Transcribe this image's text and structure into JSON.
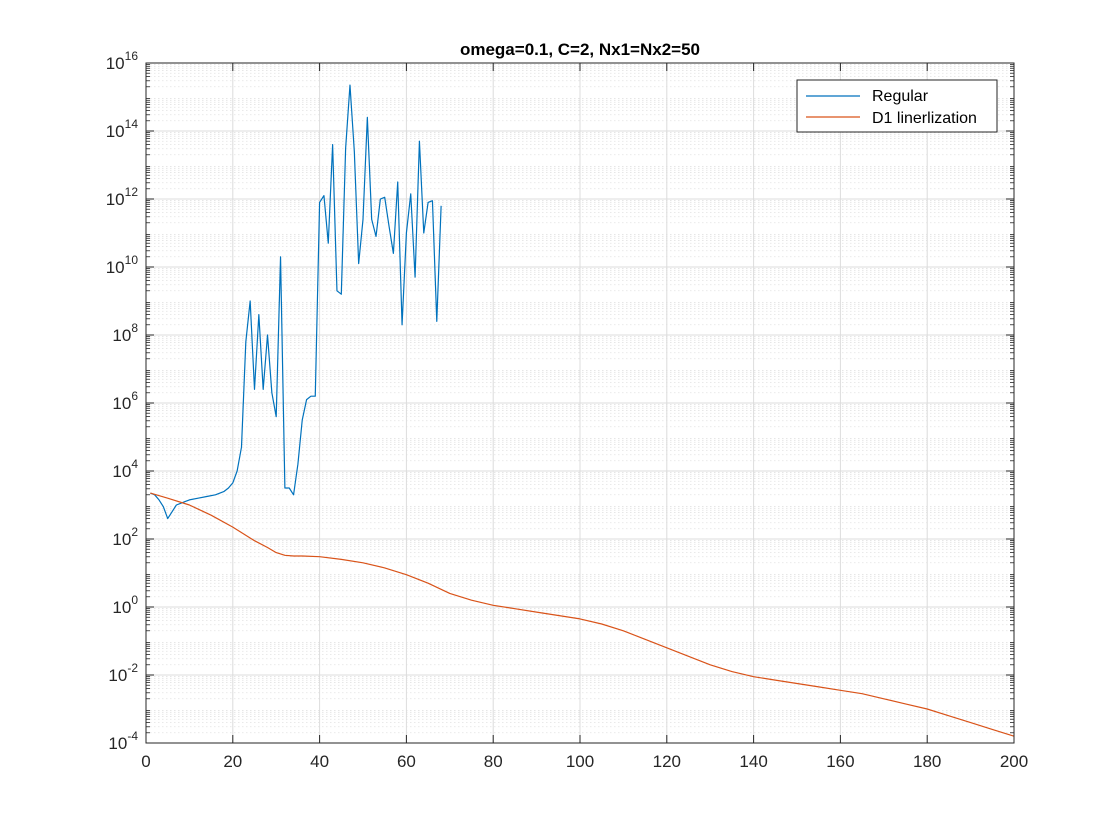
{
  "chart_data": {
    "type": "line",
    "title": "omega=0.1, C=2, Nx1=Nx2=50",
    "xlabel": "",
    "ylabel": "",
    "xlim": [
      0,
      200
    ],
    "ylim_log10": [
      -4,
      16
    ],
    "y_scale": "log",
    "x_ticks": [
      0,
      20,
      40,
      60,
      80,
      100,
      120,
      140,
      160,
      180,
      200
    ],
    "x_tick_labels": [
      "0",
      "20",
      "40",
      "60",
      "80",
      "100",
      "120",
      "140",
      "160",
      "180",
      "200"
    ],
    "y_tick_exponents": [
      -4,
      -2,
      0,
      2,
      4,
      6,
      8,
      10,
      12,
      14,
      16
    ],
    "y_tick_labels": [
      {
        "base": "10",
        "exp": "-4"
      },
      {
        "base": "10",
        "exp": "-2"
      },
      {
        "base": "10",
        "exp": "0"
      },
      {
        "base": "10",
        "exp": "2"
      },
      {
        "base": "10",
        "exp": "4"
      },
      {
        "base": "10",
        "exp": "6"
      },
      {
        "base": "10",
        "exp": "8"
      },
      {
        "base": "10",
        "exp": "10"
      },
      {
        "base": "10",
        "exp": "12"
      },
      {
        "base": "10",
        "exp": "14"
      },
      {
        "base": "10",
        "exp": "16"
      }
    ],
    "grid": true,
    "minor_grid": true,
    "legend_position": "top-right",
    "series": [
      {
        "name": "Regular",
        "color": "#0072BD",
        "x": [
          1,
          2,
          3,
          4,
          5,
          6,
          7,
          8,
          9,
          10,
          12,
          14,
          16,
          18,
          19,
          20,
          21,
          22,
          23,
          24,
          25,
          26,
          27,
          28,
          29,
          30,
          31,
          32,
          33,
          34,
          35,
          36,
          37,
          38,
          39,
          40,
          41,
          42,
          43,
          44,
          45,
          46,
          47,
          48,
          49,
          50,
          51,
          52,
          53,
          54,
          55,
          56,
          57,
          58,
          59,
          60,
          61,
          62,
          63,
          64,
          65,
          66,
          67,
          68
        ],
        "log10_y": [
          3.35,
          3.3,
          3.15,
          2.95,
          2.6,
          2.8,
          3.0,
          3.05,
          3.1,
          3.15,
          3.2,
          3.25,
          3.3,
          3.4,
          3.5,
          3.65,
          4.0,
          4.7,
          7.8,
          9.0,
          6.4,
          8.6,
          6.4,
          8.0,
          6.3,
          5.6,
          10.3,
          3.5,
          3.5,
          3.3,
          4.2,
          5.5,
          6.1,
          6.2,
          6.2,
          11.9,
          12.1,
          10.7,
          13.6,
          9.3,
          9.2,
          13.5,
          15.35,
          13.4,
          10.1,
          11.4,
          14.4,
          11.4,
          10.9,
          12.0,
          12.05,
          11.2,
          10.4,
          12.5,
          8.3,
          11.0,
          12.15,
          9.7,
          13.7,
          11.0,
          11.9,
          11.95,
          8.4,
          11.8
        ]
      },
      {
        "name": "D1 linerlization",
        "color": "#D95319",
        "x": [
          1,
          5,
          10,
          15,
          20,
          25,
          28,
          30,
          32,
          34,
          36,
          40,
          45,
          50,
          55,
          60,
          65,
          70,
          75,
          80,
          85,
          90,
          95,
          100,
          105,
          110,
          115,
          120,
          125,
          130,
          135,
          140,
          145,
          150,
          155,
          160,
          165,
          170,
          175,
          180,
          185,
          190,
          195,
          200
        ],
        "log10_y": [
          3.35,
          3.2,
          3.0,
          2.7,
          2.35,
          1.95,
          1.75,
          1.6,
          1.52,
          1.5,
          1.5,
          1.48,
          1.4,
          1.3,
          1.15,
          0.95,
          0.7,
          0.4,
          0.2,
          0.05,
          -0.05,
          -0.15,
          -0.25,
          -0.35,
          -0.5,
          -0.7,
          -0.95,
          -1.2,
          -1.45,
          -1.7,
          -1.9,
          -2.05,
          -2.15,
          -2.25,
          -2.35,
          -2.45,
          -2.55,
          -2.7,
          -2.85,
          -3.0,
          -3.2,
          -3.4,
          -3.6,
          -3.8
        ]
      }
    ]
  }
}
